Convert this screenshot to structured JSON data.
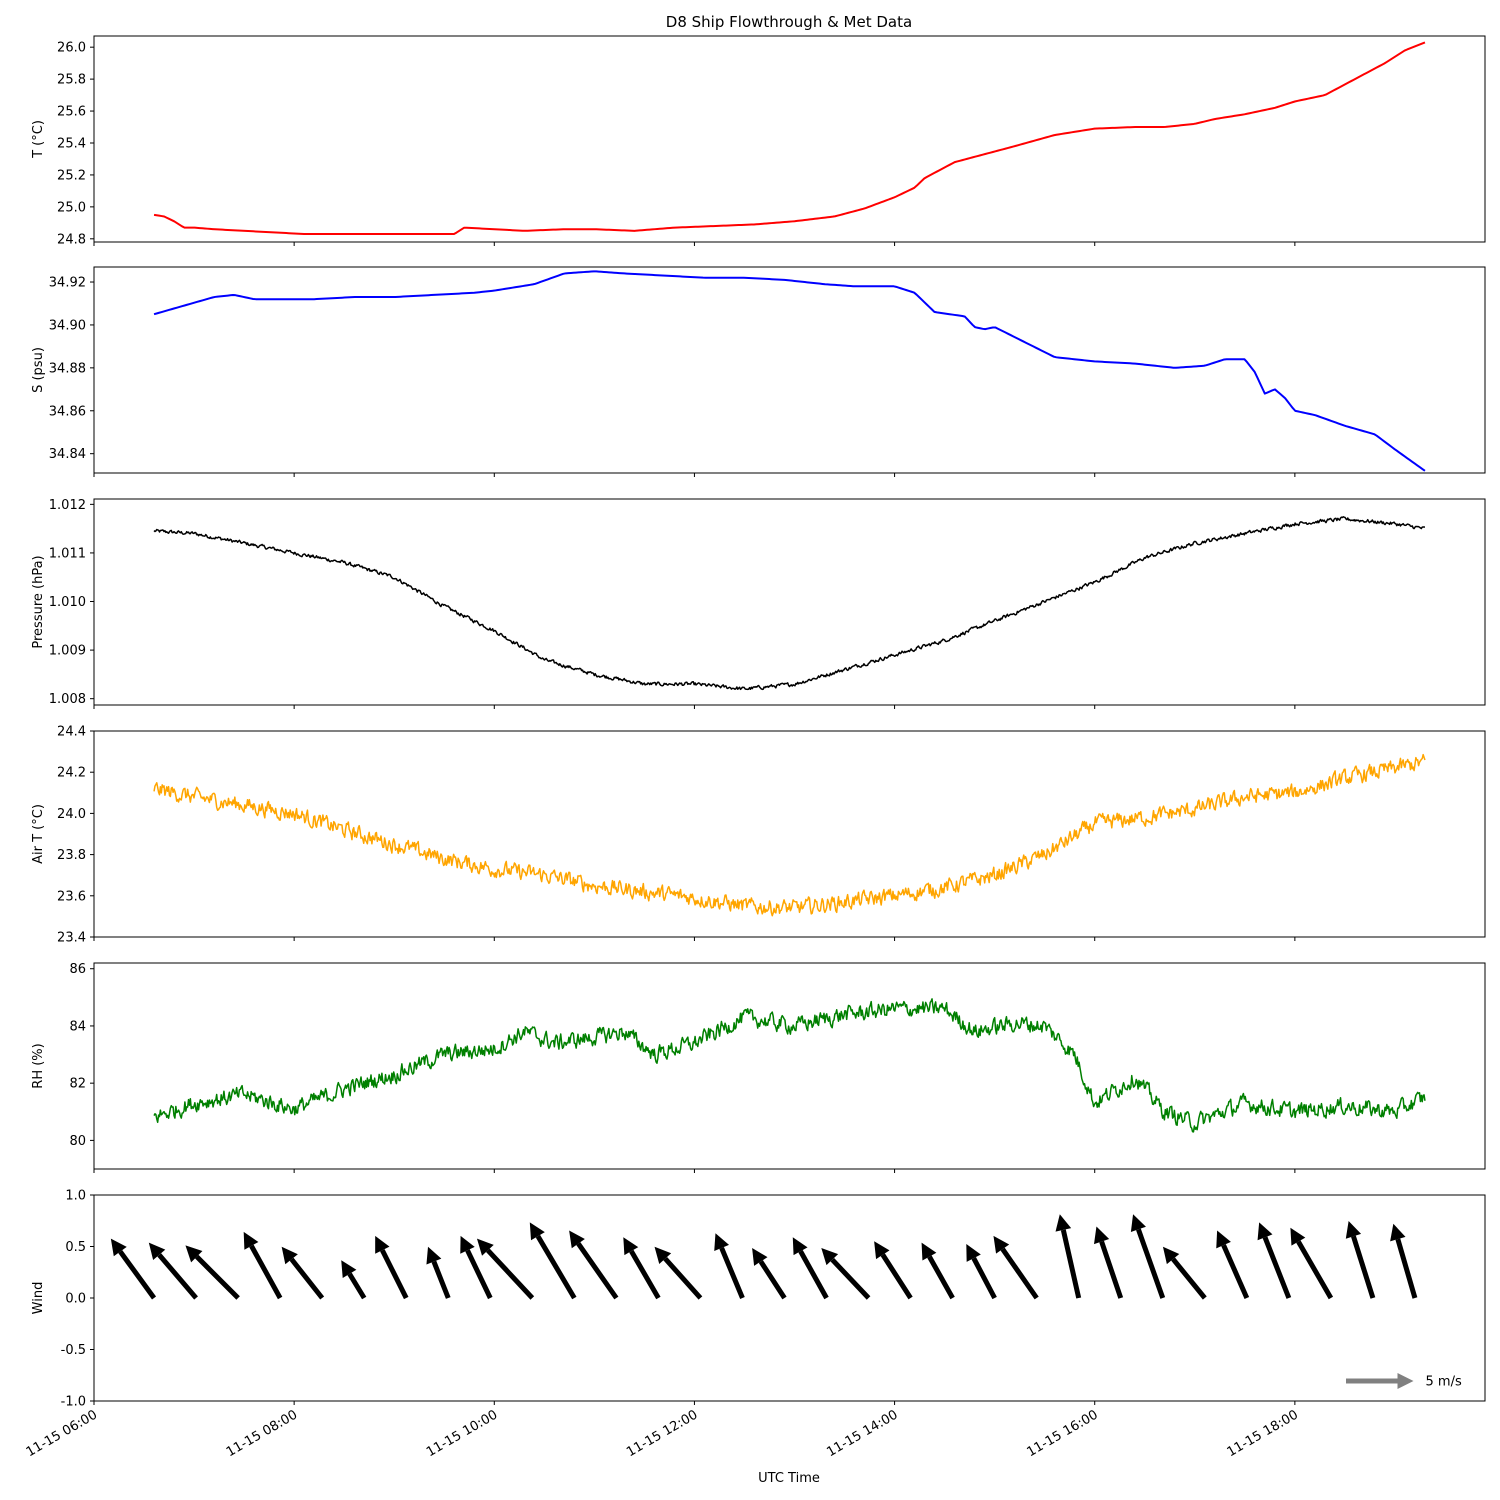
{
  "figure": {
    "title": "D8 Ship Flowthrough & Met Data",
    "xlabel": "UTC Time",
    "x_ticks": [
      "11-15 06:00",
      "11-15 08:00",
      "11-15 10:00",
      "11-15 12:00",
      "11-15 14:00",
      "11-15 16:00",
      "11-15 18:00"
    ],
    "x_tick_hours": [
      6,
      8,
      10,
      12,
      14,
      16,
      18
    ],
    "x_range_hours": [
      6.0,
      19.9
    ]
  },
  "chart_data": [
    {
      "type": "line",
      "ylabel": "T (°C)",
      "color": "#ff0000",
      "ylim": [
        24.78,
        26.07
      ],
      "y_ticks": [
        "24.8",
        "25.0",
        "25.2",
        "25.4",
        "25.6",
        "25.8",
        "26.0"
      ],
      "y_tick_values": [
        24.8,
        25.0,
        25.2,
        25.4,
        25.6,
        25.8,
        26.0
      ],
      "noise": 0,
      "x_hours": [
        6.6,
        6.7,
        6.8,
        6.9,
        7.0,
        7.2,
        7.5,
        7.8,
        8.1,
        8.4,
        8.8,
        9.2,
        9.6,
        9.7,
        10.0,
        10.3,
        10.7,
        11.0,
        11.4,
        11.8,
        12.2,
        12.6,
        13.0,
        13.4,
        13.7,
        14.0,
        14.2,
        14.3,
        14.6,
        14.9,
        15.2,
        15.6,
        16.0,
        16.4,
        16.7,
        17.0,
        17.2,
        17.5,
        17.8,
        18.0,
        18.3,
        18.6,
        18.9,
        19.1,
        19.3
      ],
      "values": [
        24.95,
        24.94,
        24.91,
        24.87,
        24.87,
        24.86,
        24.85,
        24.84,
        24.83,
        24.83,
        24.83,
        24.83,
        24.83,
        24.87,
        24.86,
        24.85,
        24.86,
        24.86,
        24.85,
        24.87,
        24.88,
        24.89,
        24.91,
        24.94,
        24.99,
        25.06,
        25.12,
        25.18,
        25.28,
        25.33,
        25.38,
        25.45,
        25.49,
        25.5,
        25.5,
        25.52,
        25.55,
        25.58,
        25.62,
        25.66,
        25.7,
        25.8,
        25.9,
        25.98,
        26.03
      ]
    },
    {
      "type": "line",
      "ylabel": "S (psu)",
      "color": "#0000ff",
      "ylim": [
        34.831,
        34.927
      ],
      "y_ticks": [
        "34.84",
        "34.86",
        "34.88",
        "34.90",
        "34.92"
      ],
      "y_tick_values": [
        34.84,
        34.86,
        34.88,
        34.9,
        34.92
      ],
      "noise": 0,
      "x_hours": [
        6.6,
        6.9,
        7.2,
        7.4,
        7.6,
        7.8,
        8.2,
        8.6,
        9.0,
        9.4,
        9.8,
        10.0,
        10.4,
        10.7,
        11.0,
        11.3,
        11.7,
        12.1,
        12.5,
        12.9,
        13.3,
        13.6,
        14.0,
        14.2,
        14.4,
        14.7,
        14.8,
        14.9,
        15.0,
        15.3,
        15.6,
        16.0,
        16.4,
        16.8,
        17.1,
        17.3,
        17.5,
        17.6,
        17.7,
        17.8,
        17.9,
        18.0,
        18.2,
        18.5,
        18.8,
        19.0,
        19.3
      ],
      "values": [
        34.905,
        34.909,
        34.913,
        34.914,
        34.912,
        34.912,
        34.912,
        34.913,
        34.913,
        34.914,
        34.915,
        34.916,
        34.919,
        34.924,
        34.925,
        34.924,
        34.923,
        34.922,
        34.922,
        34.921,
        34.919,
        34.918,
        34.918,
        34.915,
        34.906,
        34.904,
        34.899,
        34.898,
        34.899,
        34.892,
        34.885,
        34.883,
        34.882,
        34.88,
        34.881,
        34.884,
        34.884,
        34.878,
        34.868,
        34.87,
        34.866,
        34.86,
        34.858,
        34.853,
        34.849,
        34.842,
        34.832
      ]
    },
    {
      "type": "line",
      "ylabel": "Pressure (hPa)",
      "color": "#000000",
      "ylim": [
        1.00787,
        1.01211
      ],
      "y_ticks": [
        "1.008",
        "1.009",
        "1.010",
        "1.011",
        "1.012"
      ],
      "y_tick_values": [
        1.008,
        1.009,
        1.01,
        1.011,
        1.012
      ],
      "noise": 6e-05,
      "x_hours": [
        6.6,
        7.0,
        7.5,
        8.0,
        8.5,
        9.0,
        9.5,
        10.0,
        10.5,
        11.0,
        11.5,
        12.0,
        12.5,
        13.0,
        13.5,
        14.0,
        14.5,
        15.0,
        15.5,
        16.0,
        16.5,
        17.0,
        17.5,
        18.0,
        18.5,
        19.0,
        19.3
      ],
      "values": [
        1.01145,
        1.0114,
        1.0112,
        1.011,
        1.0108,
        1.0105,
        1.0099,
        1.0094,
        1.0088,
        1.0085,
        1.0083,
        1.0083,
        1.0082,
        1.0083,
        1.0086,
        1.0089,
        1.0092,
        1.0096,
        1.01,
        1.0104,
        1.0109,
        1.0112,
        1.0114,
        1.0116,
        1.0117,
        1.0116,
        1.0115
      ]
    },
    {
      "type": "line",
      "ylabel": "Air T (°C)",
      "color": "#ffa500",
      "ylim": [
        23.4,
        24.4
      ],
      "y_ticks": [
        "23.4",
        "23.6",
        "23.8",
        "24.0",
        "24.2",
        "24.4"
      ],
      "y_tick_values": [
        23.4,
        23.6,
        23.8,
        24.0,
        24.2,
        24.4
      ],
      "noise": 0.06,
      "x_hours": [
        6.6,
        7.0,
        7.5,
        8.0,
        8.5,
        9.0,
        9.5,
        10.0,
        10.5,
        11.0,
        11.5,
        12.0,
        12.5,
        13.0,
        13.5,
        14.0,
        14.5,
        15.0,
        15.5,
        16.0,
        16.5,
        17.0,
        17.5,
        18.0,
        18.5,
        19.0,
        19.3
      ],
      "values": [
        24.12,
        24.08,
        24.04,
        24.0,
        23.92,
        23.85,
        23.78,
        23.73,
        23.7,
        23.65,
        23.62,
        23.59,
        23.55,
        23.54,
        23.57,
        23.6,
        23.64,
        23.7,
        23.8,
        23.95,
        23.98,
        24.02,
        24.08,
        24.1,
        24.17,
        24.22,
        24.25
      ]
    },
    {
      "type": "line",
      "ylabel": "RH (%)",
      "color": "#008000",
      "ylim": [
        79.0,
        86.2
      ],
      "y_ticks": [
        "80",
        "82",
        "84",
        "86"
      ],
      "y_tick_values": [
        80,
        82,
        84,
        86
      ],
      "noise": 0.45,
      "x_hours": [
        6.6,
        7.0,
        7.5,
        8.0,
        8.5,
        9.0,
        9.5,
        10.0,
        10.3,
        10.6,
        11.0,
        11.3,
        11.6,
        12.0,
        12.5,
        13.0,
        13.5,
        14.0,
        14.5,
        14.8,
        15.2,
        15.5,
        15.8,
        16.0,
        16.4,
        16.7,
        17.0,
        17.5,
        18.0,
        18.5,
        19.0,
        19.3
      ],
      "values": [
        80.8,
        81.3,
        81.6,
        81.1,
        81.8,
        82.3,
        83.0,
        83.2,
        83.8,
        83.4,
        83.6,
        83.8,
        83.0,
        83.4,
        84.3,
        84.0,
        84.4,
        84.6,
        84.6,
        83.8,
        84.1,
        84.0,
        83.0,
        81.3,
        82.2,
        81.0,
        80.6,
        81.3,
        81.0,
        81.2,
        81.0,
        81.5
      ]
    },
    {
      "type": "quiver",
      "ylabel": "Wind",
      "color": "#000000",
      "ylim": [
        -1.0,
        1.0
      ],
      "y_ticks": [
        "-1.0",
        "-0.5",
        "0.0",
        "0.5",
        "1.0"
      ],
      "y_tick_values": [
        -1.0,
        -0.5,
        0.0,
        0.5,
        1.0
      ],
      "key_label": "5 m/s",
      "key_speed_ms": 5,
      "x_hours": [
        6.6,
        7.02,
        7.44,
        7.86,
        8.28,
        8.7,
        9.12,
        9.54,
        9.96,
        10.38,
        10.8,
        11.22,
        11.64,
        12.06,
        12.48,
        12.9,
        13.32,
        13.74,
        14.16,
        14.58,
        15.0,
        15.42,
        15.84,
        16.26,
        16.68,
        17.1,
        17.52,
        17.94,
        18.36,
        18.78,
        19.2
      ],
      "u_ms": [
        -3.2,
        -3.5,
        -3.9,
        -2.7,
        -3.0,
        -1.7,
        -2.3,
        -1.5,
        -2.2,
        -4.1,
        -3.3,
        -3.5,
        -2.6,
        -3.4,
        -2.0,
        -2.4,
        -2.5,
        -3.5,
        -2.7,
        -2.3,
        -2.1,
        -3.2,
        -1.4,
        -1.8,
        -2.2,
        -3.1,
        -2.2,
        -2.2,
        -3.0,
        -1.8,
        -1.6
      ],
      "v_ms": [
        4.4,
        4.1,
        3.9,
        4.9,
        3.8,
        2.8,
        4.6,
        3.8,
        4.6,
        4.4,
        5.6,
        5.0,
        4.5,
        3.8,
        4.8,
        3.7,
        4.5,
        3.7,
        4.2,
        4.1,
        4.0,
        4.6,
        6.2,
        5.3,
        6.2,
        3.8,
        5.0,
        5.6,
        5.2,
        5.7,
        5.5
      ]
    }
  ]
}
